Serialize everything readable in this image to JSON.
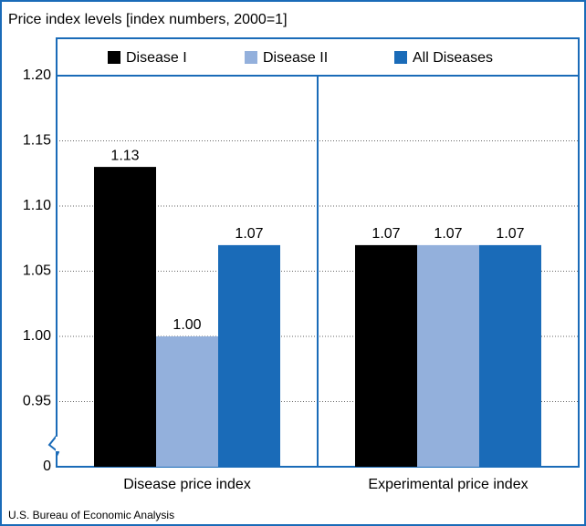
{
  "chart_data": {
    "type": "bar",
    "title": "Price index levels [index numbers, 2000=1]",
    "source": "U.S. Bureau of Economic Analysis",
    "categories": [
      "Disease price index",
      "Experimental price index"
    ],
    "series": [
      {
        "name": "Disease I",
        "color": "#000000",
        "values": [
          1.13,
          1.07
        ],
        "value_labels": [
          "1.13",
          "1.07"
        ]
      },
      {
        "name": "Disease II",
        "color": "#93b0dc",
        "values": [
          1.0,
          1.07
        ],
        "value_labels": [
          "1.00",
          "1.07"
        ]
      },
      {
        "name": "All Diseases",
        "color": "#1a6bb8",
        "values": [
          1.07,
          1.07
        ],
        "value_labels": [
          "1.07",
          "1.07"
        ]
      }
    ],
    "ylim": [
      0.9,
      1.2
    ],
    "axis_break": true,
    "yticks": [
      {
        "value": 0,
        "label": "0"
      },
      {
        "value": 0.95,
        "label": "0.95"
      },
      {
        "value": 1.0,
        "label": "1.00"
      },
      {
        "value": 1.05,
        "label": "1.05"
      },
      {
        "value": 1.1,
        "label": "1.10"
      },
      {
        "value": 1.15,
        "label": "1.15"
      },
      {
        "value": 1.2,
        "label": "1.20"
      }
    ],
    "grid": true,
    "legend": "top"
  }
}
